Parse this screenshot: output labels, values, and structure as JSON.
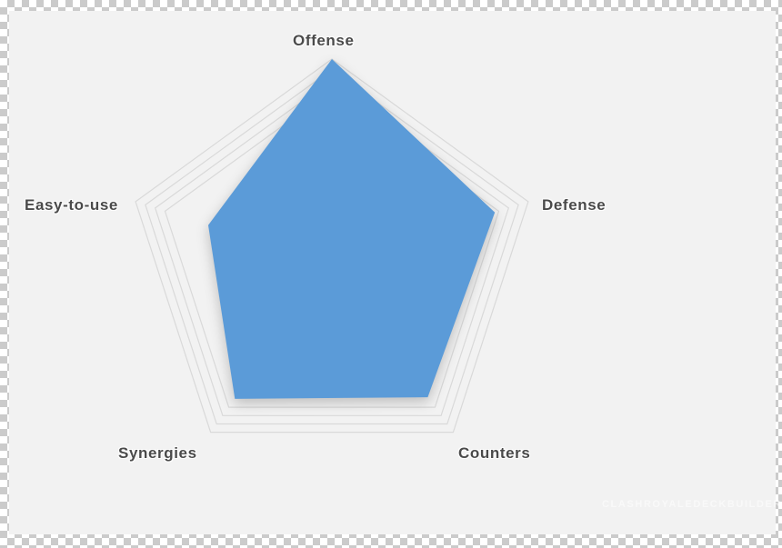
{
  "chart_data": {
    "type": "radar",
    "title": "",
    "categories": [
      "Offense",
      "Defense",
      "Counters",
      "Synergies",
      "Easy-to-use"
    ],
    "values": [
      100,
      83,
      79,
      80,
      63
    ],
    "max": 100,
    "grid": "on",
    "grid_rings": [
      0.85,
      0.9,
      0.95,
      1.0
    ],
    "legend": "none",
    "colors": {
      "series_fill": "#5b9bd8",
      "grid_stroke": "#d9d9d9",
      "label_text": "#4a4a4a",
      "background": "#f2f2f2"
    }
  },
  "watermark": {
    "text": "CLASHROYALEDECKBUILDER.COM"
  }
}
